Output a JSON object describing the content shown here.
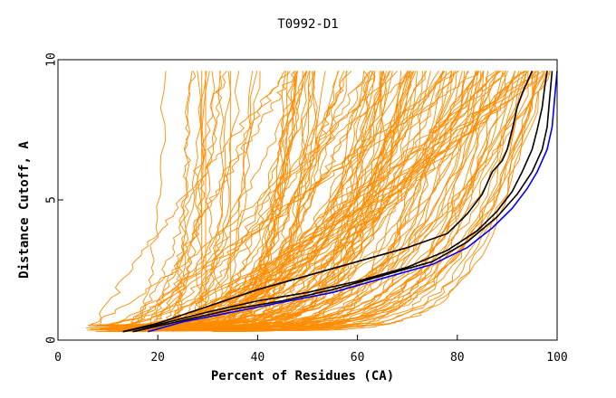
{
  "chart_data": {
    "type": "line",
    "title": "T0992-D1",
    "xlabel": "Percent of Residues (CA)",
    "ylabel": "Distance Cutoff, A",
    "xlim": [
      0,
      100
    ],
    "ylim": [
      0,
      10
    ],
    "xticks": [
      0,
      20,
      40,
      60,
      80,
      100
    ],
    "yticks": [
      0,
      5,
      10
    ],
    "grid": false,
    "legend": "none",
    "colors": {
      "background_models": "#ff8c00",
      "highlight_black": "#000000",
      "highlight_blue": "#0000ff"
    },
    "orange_family_count": 150,
    "series": [
      {
        "color": "#000000",
        "x": [
          13,
          20,
          30,
          40,
          50,
          60,
          70,
          78,
          82,
          85,
          87,
          89,
          90,
          91,
          92,
          93,
          94,
          95
        ],
        "y": [
          0.3,
          0.6,
          1.2,
          1.8,
          2.3,
          2.8,
          3.3,
          3.8,
          4.5,
          5.2,
          6.0,
          6.4,
          6.8,
          7.5,
          8.3,
          8.8,
          9.2,
          9.6
        ]
      },
      {
        "color": "#000000",
        "x": [
          13,
          20,
          30,
          40,
          50,
          60,
          70,
          78,
          84,
          88,
          91,
          93,
          95,
          96,
          97,
          97.5,
          98
        ],
        "y": [
          0.3,
          0.55,
          1.0,
          1.4,
          1.7,
          2.1,
          2.6,
          3.2,
          3.9,
          4.6,
          5.3,
          6.0,
          6.8,
          7.5,
          8.3,
          9.0,
          9.6
        ]
      },
      {
        "color": "#000000",
        "x": [
          15,
          25,
          35,
          45,
          55,
          65,
          75,
          82,
          88,
          92,
          95,
          97,
          98,
          98.5,
          99
        ],
        "y": [
          0.3,
          0.7,
          1.1,
          1.4,
          1.8,
          2.3,
          2.8,
          3.5,
          4.4,
          5.2,
          6.0,
          6.8,
          7.6,
          8.6,
          9.6
        ]
      },
      {
        "color": "#0000ff",
        "x": [
          18,
          25,
          35,
          45,
          55,
          65,
          75,
          82,
          87,
          91,
          94,
          96,
          98,
          99,
          99.5,
          100
        ],
        "y": [
          0.3,
          0.65,
          1.0,
          1.35,
          1.7,
          2.2,
          2.7,
          3.3,
          4.0,
          4.7,
          5.4,
          6.0,
          6.8,
          7.6,
          8.6,
          9.6
        ]
      }
    ]
  }
}
